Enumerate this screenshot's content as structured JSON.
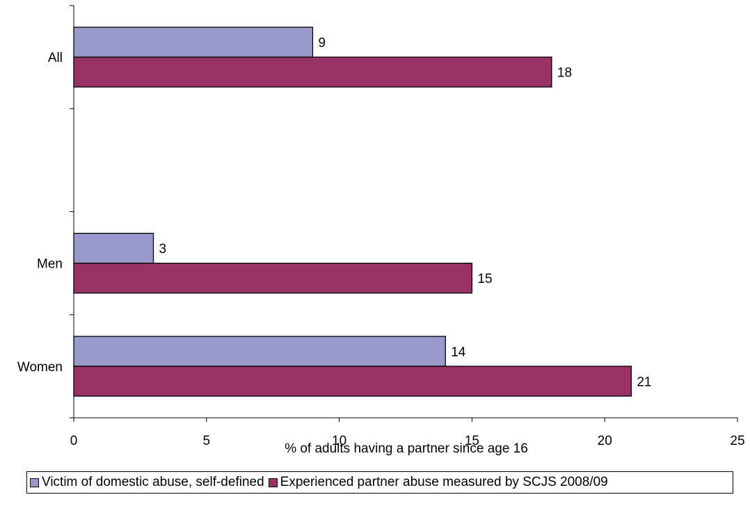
{
  "chart_data": {
    "type": "bar",
    "orientation": "horizontal",
    "categories": [
      "All",
      "",
      "Men",
      "Women"
    ],
    "series": [
      {
        "name": "Victim of domestic abuse, self-defined",
        "color": "#9999cc",
        "values": [
          9,
          null,
          3,
          14
        ]
      },
      {
        "name": "Experienced partner abuse measured by SCJS 2008/09",
        "color": "#993366",
        "values": [
          18,
          null,
          15,
          21
        ]
      }
    ],
    "title": "",
    "xlabel": "% of adults having a partner since age 16",
    "ylabel": "",
    "xlim": [
      0,
      25
    ],
    "xticks": [
      0,
      5,
      10,
      15,
      20,
      25
    ],
    "grid": false,
    "legend_position": "bottom"
  }
}
